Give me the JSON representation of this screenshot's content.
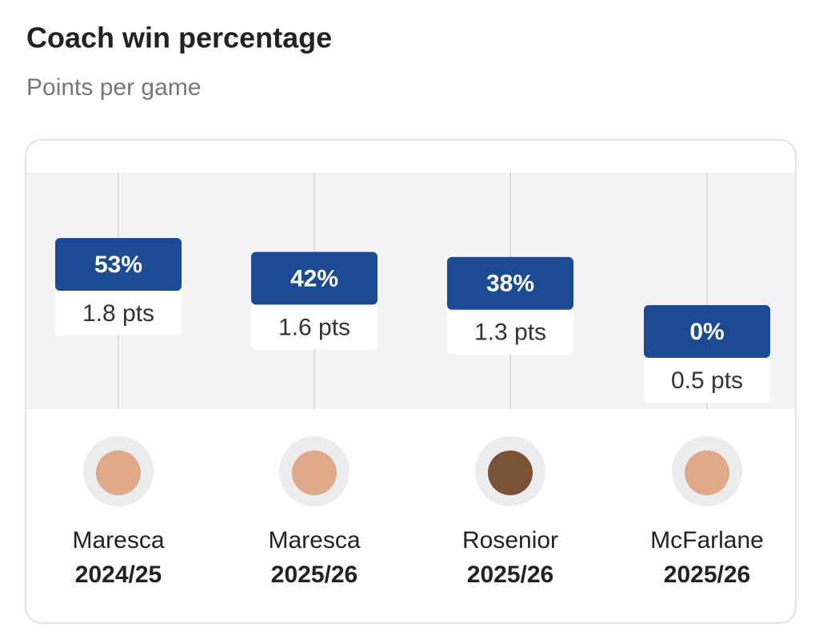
{
  "chart_data": {
    "type": "label",
    "title": "Coach win percentage",
    "subtitle": "Points per game",
    "categories": [
      "Maresca",
      "Maresca",
      "Rosenior",
      "McFarlane"
    ],
    "seasons": [
      "2024/25",
      "2025/26",
      "2025/26",
      "2025/26"
    ],
    "values": [
      53,
      42,
      38,
      0
    ],
    "value_labels": [
      "53%",
      "42%",
      "38%",
      "0%"
    ],
    "secondary_values": [
      1.8,
      1.6,
      1.3,
      0.5
    ],
    "secondary_value_labels": [
      "1.8 pts",
      "1.6 pts",
      "1.3 pts",
      "0.5 pts"
    ],
    "color": "#1d4b93"
  }
}
